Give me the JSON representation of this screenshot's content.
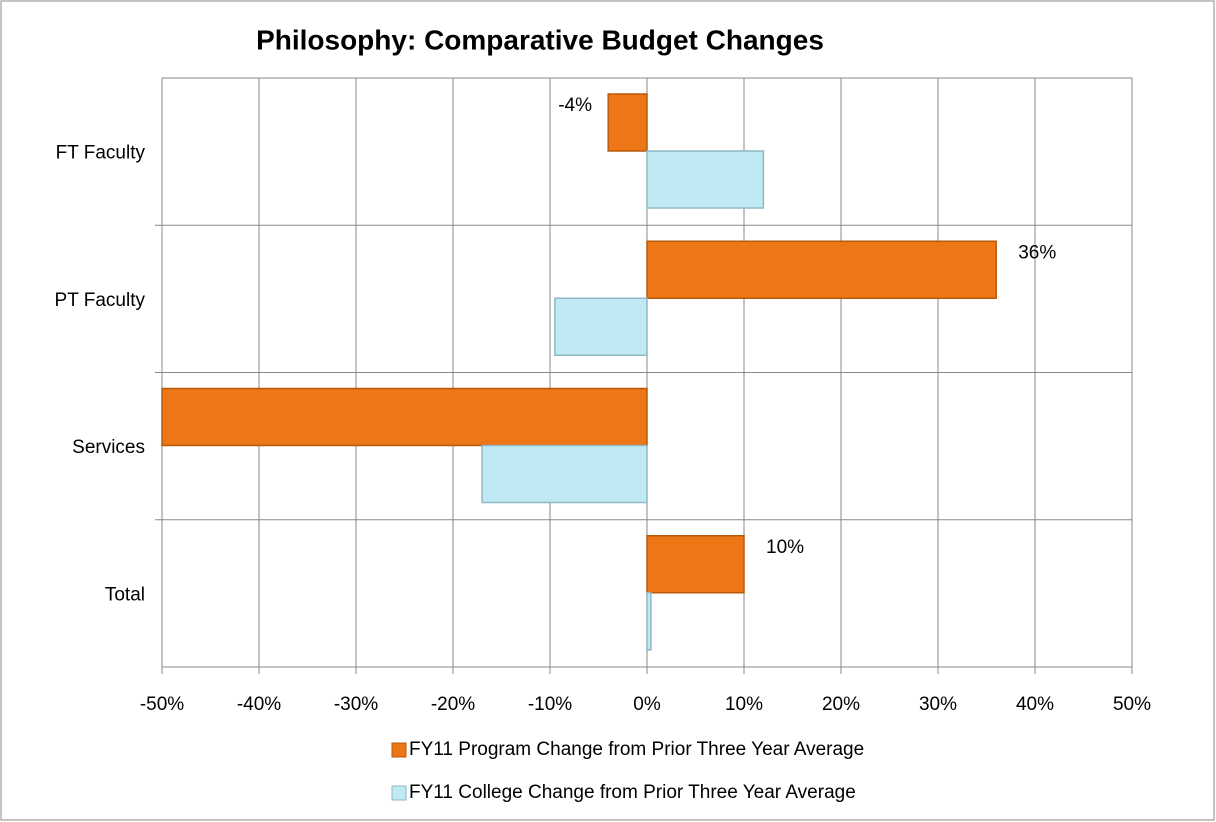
{
  "chart_data": {
    "type": "hbar",
    "title": "Philosophy: Comparative Budget Changes",
    "categories": [
      "FT Faculty",
      "PT Faculty",
      "Services",
      "Total"
    ],
    "series": [
      {
        "name": "FY11 Program Change from Prior Three Year Average",
        "color": "#ed7616",
        "values": [
          -4,
          36,
          -50,
          10
        ],
        "value_labels": [
          "-4%",
          "36%",
          null,
          "10%"
        ]
      },
      {
        "name": "FY11 College Change from Prior Three Year Average",
        "color": "#bfe9f3",
        "values": [
          12,
          -9.5,
          -17,
          0.4
        ]
      }
    ],
    "xlim": [
      -50,
      50
    ],
    "xticks": [
      {
        "value": -50,
        "label": "-50%"
      },
      {
        "value": -40,
        "label": "-40%"
      },
      {
        "value": -30,
        "label": "-30%"
      },
      {
        "value": -20,
        "label": "-20%"
      },
      {
        "value": -10,
        "label": "-10%"
      },
      {
        "value": 0,
        "label": "0%"
      },
      {
        "value": 10,
        "label": "10%"
      },
      {
        "value": 20,
        "label": "20%"
      },
      {
        "value": 30,
        "label": "30%"
      },
      {
        "value": 40,
        "label": "40%"
      },
      {
        "value": 50,
        "label": "50%"
      }
    ],
    "grid": true
  }
}
